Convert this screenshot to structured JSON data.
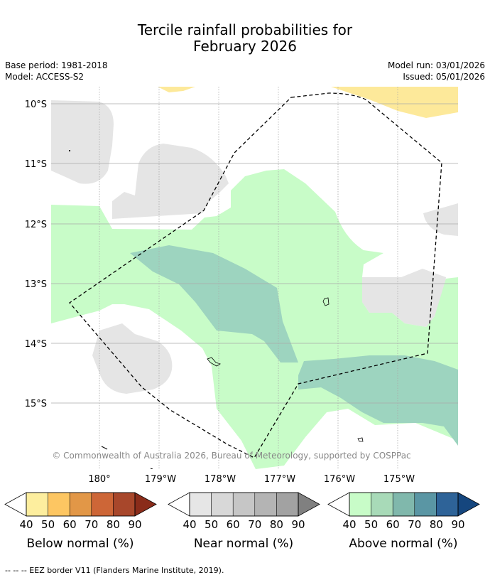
{
  "title": {
    "line1": "Tercile rainfall probabilities for",
    "line2": "February 2026"
  },
  "info": {
    "base_period": "Base period: 1981-2018",
    "model": "Model: ACCESS-S2",
    "model_run": "Model run: 03/01/2026",
    "issued": "Issued: 05/01/2026"
  },
  "map": {
    "lat_labels": [
      "10°S",
      "11°S",
      "12°S",
      "13°S",
      "14°S",
      "15°S"
    ],
    "lon_labels": [
      "180°",
      "179°W",
      "178°W",
      "177°W",
      "176°W",
      "175°W"
    ],
    "attribution": "© Commonwealth of Australia 2026, Bureau of Meteorology, supported by COSPPac",
    "colors": {
      "near_normal_fill": "#e5e5e5",
      "above_40_50": "#c8fcc8",
      "above_50_60": "#9dd4bf",
      "below_40_50": "#fde99a",
      "graticule": "#aaaaaa",
      "eez_border": "#000000"
    }
  },
  "legends": [
    {
      "label": "Below normal (%)",
      "ticks": [
        "40",
        "50",
        "60",
        "70",
        "80",
        "90"
      ],
      "low_color": "#ffffff",
      "colors": [
        "#fdee9e",
        "#fdc662",
        "#e29747",
        "#cd6637",
        "#a8472b"
      ],
      "high_color": "#8a2c1a"
    },
    {
      "label": "Near normal (%)",
      "ticks": [
        "40",
        "50",
        "60",
        "70",
        "80",
        "90"
      ],
      "low_color": "#ffffff",
      "colors": [
        "#e6e6e6",
        "#d8d8d8",
        "#c6c6c6",
        "#b4b4b4",
        "#a2a2a2"
      ],
      "high_color": "#808080"
    },
    {
      "label": "Above normal (%)",
      "ticks": [
        "40",
        "50",
        "60",
        "70",
        "80",
        "90"
      ],
      "low_color": "#ffffff",
      "colors": [
        "#c8fcc8",
        "#a8dab8",
        "#80b8ac",
        "#5a96a4",
        "#2e6398"
      ],
      "high_color": "#15467e"
    }
  ],
  "footer": {
    "eez_legend": "--  --  -- EEZ border V11 (Flanders Marine Institute, 2019)."
  }
}
